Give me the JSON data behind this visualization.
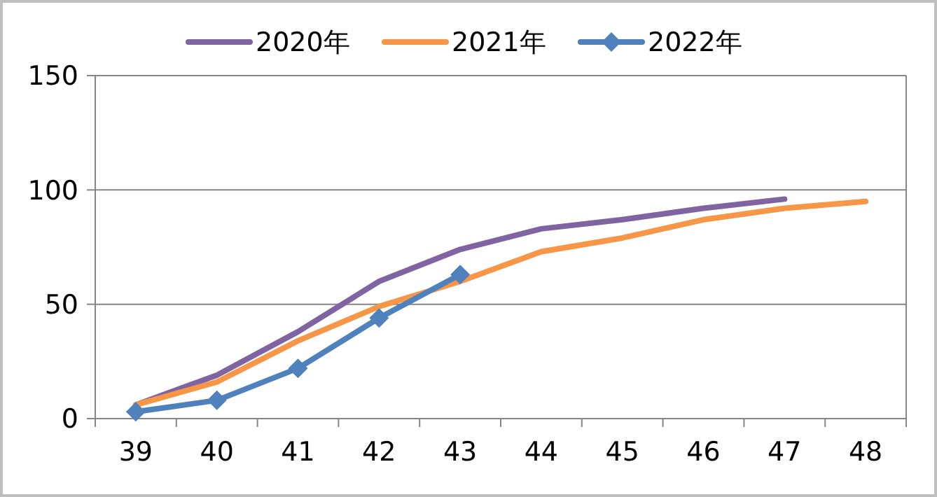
{
  "chart_data": {
    "type": "line",
    "categories": [
      "39",
      "40",
      "41",
      "42",
      "43",
      "44",
      "45",
      "46",
      "47",
      "48"
    ],
    "series": [
      {
        "name": "2020年",
        "color": "#8064a2",
        "marker": "none",
        "values": [
          6,
          19,
          38,
          60,
          74,
          83,
          87,
          92,
          96,
          null
        ]
      },
      {
        "name": "2021年",
        "color": "#f79646",
        "marker": "none",
        "values": [
          6,
          16,
          34,
          49,
          60,
          73,
          79,
          87,
          92,
          95
        ]
      },
      {
        "name": "2022年",
        "color": "#4f81bd",
        "marker": "diamond",
        "values": [
          3,
          8,
          22,
          44,
          63,
          null,
          null,
          null,
          null,
          null
        ]
      }
    ],
    "ylim": [
      0,
      150
    ],
    "yticks": [
      0,
      50,
      100,
      150
    ],
    "grid": "y",
    "legend": "top"
  }
}
